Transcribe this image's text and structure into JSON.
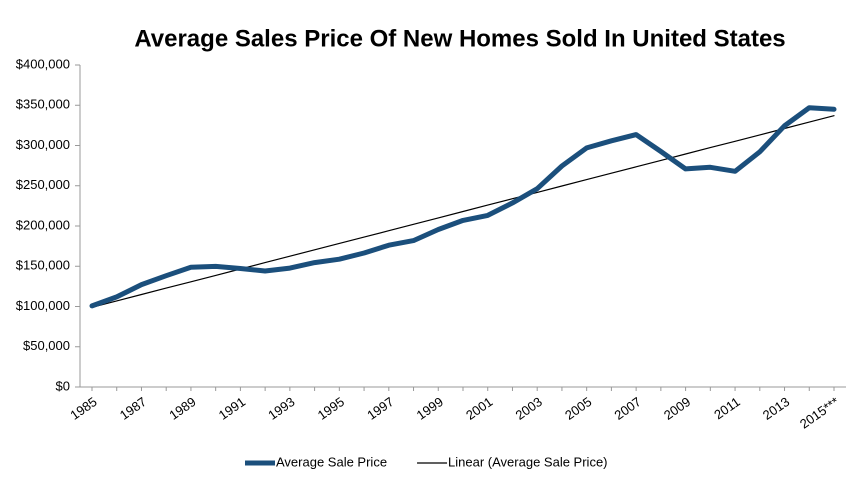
{
  "chart_data": {
    "type": "line",
    "title": "Average Sales Price Of New Homes Sold In United States",
    "categories": [
      "1985",
      null,
      "1987",
      null,
      "1989",
      null,
      "1991",
      null,
      "1993",
      null,
      "1995",
      null,
      "1997",
      null,
      "1999",
      null,
      "2001",
      null,
      "2003",
      null,
      "2005",
      null,
      "2007",
      null,
      "2009",
      null,
      "2011",
      null,
      "2013",
      null,
      "2015***"
    ],
    "series": [
      {
        "name": "Average Sale Price",
        "color": "#1b4f7c",
        "values": [
          100800,
          111900,
          127200,
          138300,
          148800,
          149800,
          147200,
          144100,
          147700,
          154500,
          158700,
          166400,
          176200,
          181900,
          195600,
          207000,
          213200,
          228700,
          246300,
          274500,
          297000,
          305900,
          313600,
          292600,
          270900,
          272900,
          267900,
          292200,
          324500,
          347000,
          345000
        ]
      },
      {
        "name": "Linear (Average Sale Price)",
        "color": "#000000",
        "values": [
          99000,
          106933,
          114867,
          122800,
          130733,
          138667,
          146600,
          154533,
          162467,
          170400,
          178333,
          186267,
          194200,
          202133,
          210067,
          218000,
          225933,
          233867,
          241800,
          249733,
          257667,
          265600,
          273533,
          281467,
          289400,
          297333,
          305267,
          313200,
          321133,
          329067,
          337000
        ]
      }
    ],
    "ylim": [
      0,
      400000
    ],
    "yticks": [
      {
        "value": 0,
        "label": "$0"
      },
      {
        "value": 50000,
        "label": "$50,000"
      },
      {
        "value": 100000,
        "label": "$100,000"
      },
      {
        "value": 150000,
        "label": "$150,000"
      },
      {
        "value": 200000,
        "label": "$200,000"
      },
      {
        "value": 250000,
        "label": "$250,000"
      },
      {
        "value": 300000,
        "label": "$300,000"
      },
      {
        "value": 350000,
        "label": "$350,000"
      },
      {
        "value": 400000,
        "label": "$400,000"
      }
    ],
    "legend": "bottom"
  }
}
